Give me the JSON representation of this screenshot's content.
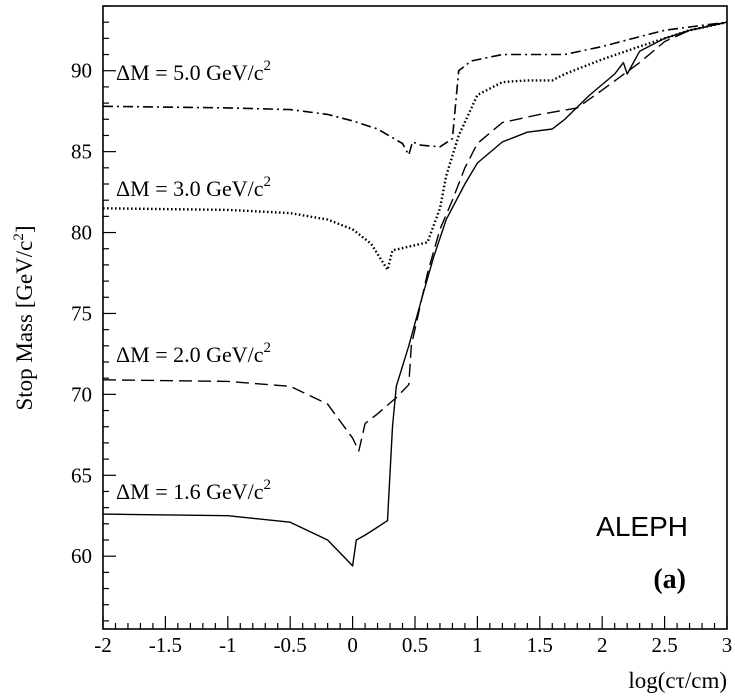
{
  "chart_data": {
    "type": "line",
    "ylabel_main": "Stop Mass [GeV/c",
    "ylabel_sup": "2",
    "ylabel_close": "]",
    "xlabel": "log(cτ/cm)",
    "xlim": [
      -2,
      3
    ],
    "ylim": [
      55.5,
      94
    ],
    "x_ticks": [
      -2,
      -1.5,
      -1,
      -0.5,
      0,
      0.5,
      1,
      1.5,
      2,
      2.5,
      3
    ],
    "x_tick_labels": [
      "-2",
      "-1.5",
      "-1",
      "-0.5",
      "0",
      "0.5",
      "1",
      "1.5",
      "2",
      "2.5",
      "3"
    ],
    "y_ticks": [
      60,
      65,
      70,
      75,
      80,
      85,
      90
    ],
    "y_tick_labels": [
      "60",
      "65",
      "70",
      "75",
      "80",
      "85",
      "90"
    ],
    "grid": false,
    "annotations": [
      "ALEPH",
      "(a)"
    ],
    "series": [
      {
        "name": "ΔM = 5.0 GeV/c",
        "name_sup": "2",
        "style": "dashdot",
        "x": [
          -2.0,
          -1.0,
          -0.5,
          -0.2,
          0.0,
          0.2,
          0.4,
          0.45,
          0.48,
          0.55,
          0.7,
          0.8,
          0.85,
          0.95,
          1.2,
          1.5,
          1.7,
          2.0,
          2.3,
          2.5,
          2.7,
          3.0
        ],
        "y": [
          87.8,
          87.7,
          87.6,
          87.3,
          86.9,
          86.4,
          85.5,
          84.8,
          85.6,
          85.4,
          85.3,
          85.8,
          90.0,
          90.6,
          91.0,
          91.0,
          91.0,
          91.5,
          92.1,
          92.5,
          92.7,
          93.0
        ]
      },
      {
        "name": "ΔM = 3.0 GeV/c",
        "name_sup": "2",
        "style": "dotted",
        "x": [
          -2.0,
          -1.0,
          -0.5,
          -0.2,
          0.0,
          0.15,
          0.28,
          0.32,
          0.38,
          0.6,
          0.7,
          0.75,
          0.85,
          1.0,
          1.2,
          1.4,
          1.6,
          1.7,
          2.0,
          2.3,
          2.5,
          2.7,
          3.0
        ],
        "y": [
          81.5,
          81.4,
          81.2,
          80.8,
          80.2,
          79.3,
          77.7,
          78.9,
          79.0,
          79.4,
          81.5,
          83.5,
          86.0,
          88.5,
          89.3,
          89.4,
          89.4,
          89.8,
          90.7,
          91.5,
          92.0,
          92.5,
          93.0
        ]
      },
      {
        "name": "ΔM = 2.0 GeV/c",
        "name_sup": "2",
        "style": "dashed",
        "x": [
          -2.0,
          -1.0,
          -0.5,
          -0.2,
          0.0,
          0.05,
          0.1,
          0.2,
          0.35,
          0.45,
          0.47,
          0.6,
          0.7,
          0.8,
          0.9,
          1.0,
          1.2,
          1.5,
          1.8,
          2.0,
          2.3,
          2.5,
          2.7,
          3.0
        ],
        "y": [
          70.9,
          70.8,
          70.5,
          69.4,
          67.3,
          66.5,
          68.2,
          68.8,
          69.8,
          70.6,
          73.0,
          77.5,
          80.2,
          82.0,
          84.0,
          85.5,
          86.8,
          87.3,
          87.7,
          88.8,
          90.5,
          91.8,
          92.5,
          93.0
        ]
      },
      {
        "name": "ΔM = 1.6 GeV/c",
        "name_sup": "2",
        "style": "solid",
        "x": [
          -2.0,
          -1.0,
          -0.5,
          -0.2,
          -0.05,
          0.0,
          0.03,
          0.1,
          0.2,
          0.28,
          0.32,
          0.35,
          0.45,
          0.55,
          0.65,
          0.75,
          0.9,
          1.0,
          1.2,
          1.4,
          1.6,
          1.7,
          1.9,
          2.1,
          2.17,
          2.2,
          2.3,
          2.5,
          2.7,
          3.0
        ],
        "y": [
          62.6,
          62.5,
          62.1,
          61.0,
          59.8,
          59.4,
          61.0,
          61.3,
          61.8,
          62.2,
          68.0,
          70.5,
          73.0,
          75.8,
          78.5,
          80.8,
          83.0,
          84.3,
          85.6,
          86.2,
          86.4,
          87.0,
          88.5,
          89.8,
          90.5,
          89.8,
          91.2,
          92.0,
          92.5,
          93.0
        ]
      }
    ]
  }
}
